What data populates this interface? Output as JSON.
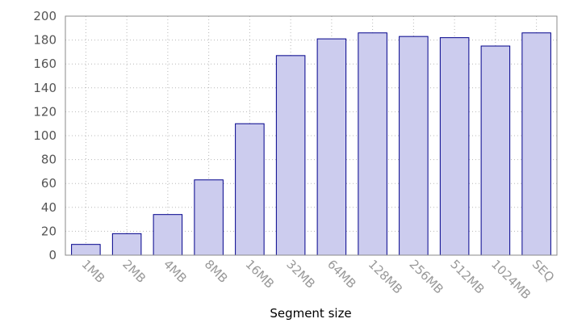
{
  "chart_data": {
    "type": "bar",
    "title": "",
    "xlabel": "Segment size",
    "ylabel": "",
    "categories": [
      "1MB",
      "2MB",
      "4MB",
      "8MB",
      "16MB",
      "32MB",
      "64MB",
      "128MB",
      "256MB",
      "512MB",
      "1024MB",
      "SEQ"
    ],
    "values": [
      9,
      18,
      34,
      63,
      110,
      167,
      181,
      186,
      183,
      182,
      175,
      186
    ],
    "ylim": [
      0,
      200
    ],
    "yticks": [
      0,
      20,
      40,
      60,
      80,
      100,
      120,
      140,
      160,
      180,
      200
    ],
    "grid": true,
    "legend": "none",
    "colors": {
      "bar_fill": "#ccccee",
      "bar_stroke": "#00008b"
    }
  }
}
